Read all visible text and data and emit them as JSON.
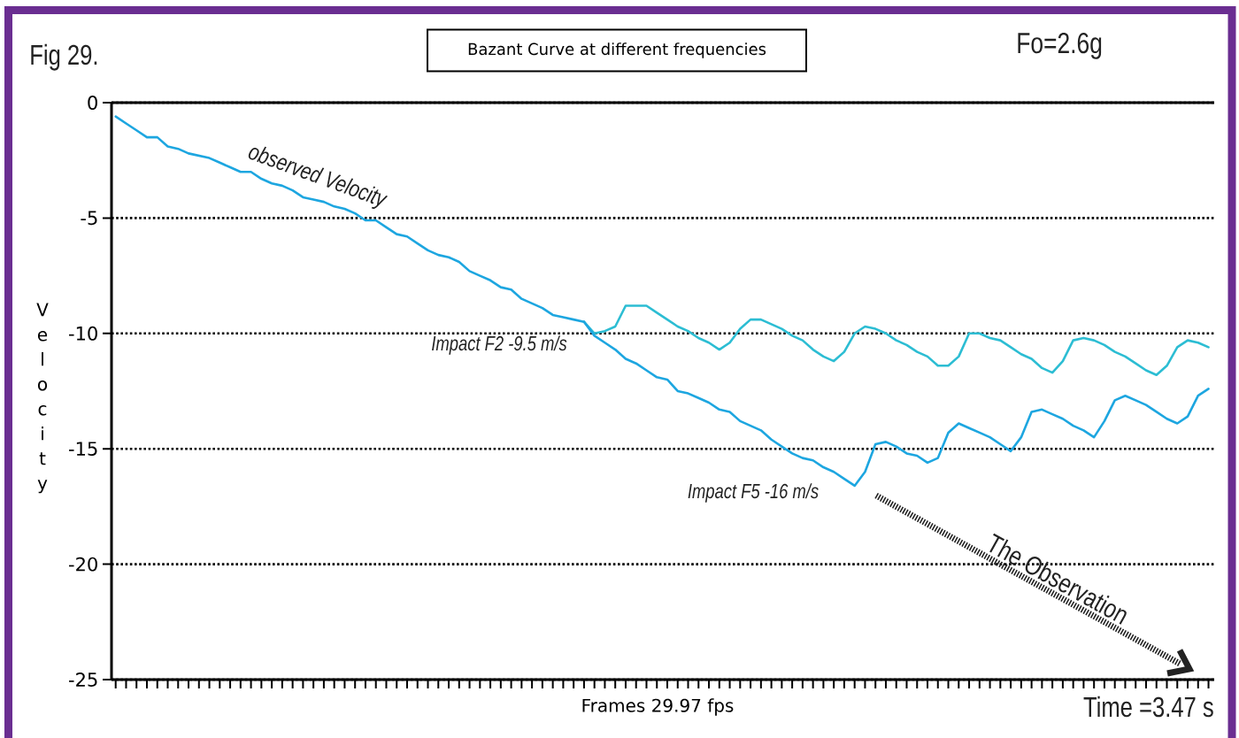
{
  "chart_data": {
    "type": "line",
    "title": "Bazant Curve at different frequencies",
    "xlabel": "Frames 29.97 fps",
    "ylabel": "Velocity",
    "annotations": [
      "Fig 29.",
      "Fo=2.6g",
      "Time =3.47 s",
      "The Observation"
    ],
    "categories": [
      null,
      null,
      null,
      null,
      null,
      null,
      null,
      null,
      null,
      null,
      null,
      null,
      null,
      null,
      null,
      null,
      null,
      null,
      null,
      null,
      null,
      null,
      null,
      null,
      null,
      null,
      null,
      null,
      null,
      null,
      null,
      null,
      null,
      null,
      null,
      null,
      null,
      null,
      null,
      null,
      null,
      null,
      null,
      null,
      null,
      null,
      null,
      null,
      null,
      null,
      null,
      null,
      null,
      null,
      null,
      null,
      null,
      null,
      null,
      null,
      null,
      null,
      null,
      null,
      null,
      null,
      null,
      null,
      null,
      null,
      null,
      null,
      null,
      null,
      null,
      null,
      null,
      null,
      null,
      null,
      null,
      null,
      null,
      null,
      null,
      null,
      null,
      null,
      null,
      null,
      null,
      null,
      null,
      null,
      null,
      null,
      null,
      null,
      null,
      null,
      null,
      null,
      null,
      null,
      null,
      null
    ],
    "series": [
      {
        "name": "observed Velocity",
        "color": "#1da6e0",
        "values": [
          -0.6,
          -0.9,
          -1.2,
          -1.5,
          -1.5,
          -1.9,
          -2.0,
          -2.2,
          -2.3,
          -2.4,
          -2.6,
          -2.8,
          -3.0,
          -3.0,
          -3.3,
          -3.5,
          -3.6,
          -3.8,
          -4.1,
          -4.2,
          -4.3,
          -4.5,
          -4.6,
          -4.8,
          -5.1,
          -5.1,
          -5.4,
          -5.7,
          -5.8,
          -6.1,
          -6.4,
          -6.6,
          -6.7,
          -6.9,
          -7.3,
          -7.5,
          -7.7,
          -8.0,
          -8.1,
          -8.5,
          -8.7,
          -8.9,
          -9.2,
          -9.3,
          -9.4,
          -9.5,
          null,
          null,
          null,
          null,
          null,
          null,
          null,
          null,
          null,
          null,
          null,
          null,
          null,
          null,
          null,
          null,
          null,
          null,
          null,
          null,
          null,
          null,
          null,
          null,
          null,
          null,
          null,
          null,
          null,
          null,
          null,
          null,
          null,
          null,
          null,
          null,
          null,
          null,
          null,
          null,
          null,
          null,
          null,
          null,
          null,
          null,
          null,
          null,
          null,
          null,
          null,
          null,
          null,
          null,
          null,
          null,
          null,
          null,
          null,
          null
        ]
      },
      {
        "name": "Impact F2 -9.5 m/s",
        "color": "#2cbdd3",
        "values": [
          null,
          null,
          null,
          null,
          null,
          null,
          null,
          null,
          null,
          null,
          null,
          null,
          null,
          null,
          null,
          null,
          null,
          null,
          null,
          null,
          null,
          null,
          null,
          null,
          null,
          null,
          null,
          null,
          null,
          null,
          null,
          null,
          null,
          null,
          null,
          null,
          null,
          null,
          null,
          null,
          null,
          null,
          null,
          null,
          null,
          -9.5,
          -10.0,
          -9.9,
          -9.7,
          -8.8,
          -8.8,
          -8.8,
          -9.1,
          -9.4,
          -9.7,
          -9.9,
          -10.2,
          -10.4,
          -10.7,
          -10.4,
          -9.8,
          -9.4,
          -9.4,
          -9.6,
          -9.8,
          -10.1,
          -10.3,
          -10.7,
          -11.0,
          -11.2,
          -10.8,
          -10.0,
          -9.7,
          -9.8,
          -10.0,
          -10.3,
          -10.5,
          -10.8,
          -11.0,
          -11.4,
          -11.4,
          -11.0,
          -10.0,
          -10.0,
          -10.2,
          -10.3,
          -10.6,
          -10.9,
          -11.1,
          -11.5,
          -11.7,
          -11.2,
          -10.3,
          -10.2,
          -10.3,
          -10.5,
          -10.8,
          -11.0,
          -11.3,
          -11.6,
          -11.8,
          -11.4,
          -10.6,
          -10.3,
          -10.4,
          -10.6
        ]
      },
      {
        "name": "Impact F5 -16 m/s",
        "color": "#1da6e0",
        "values": [
          null,
          null,
          null,
          null,
          null,
          null,
          null,
          null,
          null,
          null,
          null,
          null,
          null,
          null,
          null,
          null,
          null,
          null,
          null,
          null,
          null,
          null,
          null,
          null,
          null,
          null,
          null,
          null,
          null,
          null,
          null,
          null,
          null,
          null,
          null,
          null,
          null,
          null,
          null,
          null,
          null,
          null,
          null,
          null,
          null,
          -9.5,
          -10.1,
          -10.4,
          -10.7,
          -11.1,
          -11.3,
          -11.6,
          -11.9,
          -12.0,
          -12.5,
          -12.6,
          -12.8,
          -13.0,
          -13.3,
          -13.4,
          -13.8,
          -14.0,
          -14.2,
          -14.6,
          -14.9,
          -15.2,
          -15.4,
          -15.5,
          -15.8,
          -16.0,
          -16.3,
          -16.6,
          -16.0,
          -14.8,
          -14.7,
          -14.9,
          -15.2,
          -15.3,
          -15.6,
          -15.4,
          -14.3,
          -13.9,
          -14.1,
          -14.3,
          -14.5,
          -14.8,
          -15.1,
          -14.5,
          -13.4,
          -13.3,
          -13.5,
          -13.7,
          -14.0,
          -14.2,
          -14.5,
          -13.8,
          -12.9,
          -12.7,
          -12.9,
          -13.1,
          -13.4,
          -13.7,
          -13.9,
          -13.6,
          -12.7,
          -12.4
        ]
      }
    ],
    "ylim": [
      -25,
      0
    ],
    "yticks": [
      -25,
      -20,
      -15,
      -10,
      -5,
      0
    ],
    "grid": "y"
  }
}
